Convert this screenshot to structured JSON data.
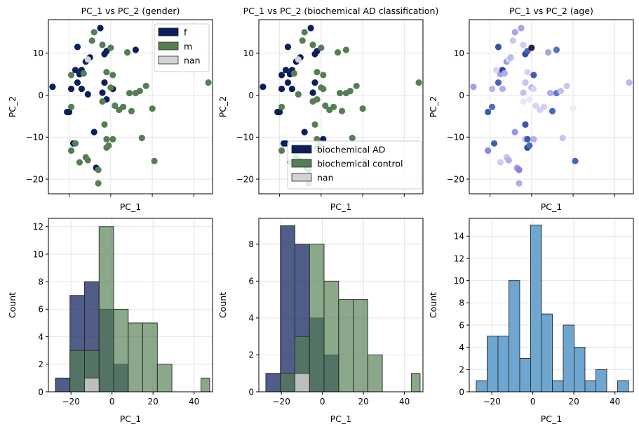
{
  "colors": {
    "f": "#0c1f5c",
    "m": "#557f52",
    "nan": "#d3d3d3",
    "age_hist": "#6ea6cf",
    "grid": "#e4e4e4"
  },
  "chart_data": [
    {
      "type": "scatter",
      "title": "PC_1 vs PC_2 (gender)",
      "xlabel": "PC_1",
      "ylabel": "PC_2",
      "xlim": [
        -30,
        49
      ],
      "ylim": [
        -23.5,
        18
      ],
      "xticks": [
        -20,
        0,
        20,
        40
      ],
      "yticks": [
        -20,
        -10,
        0,
        10
      ],
      "show_xticklabels": false,
      "grid": true,
      "legend_position": "upper right",
      "legend": [
        "f",
        "m",
        "nan"
      ],
      "series": [
        {
          "name": "f",
          "points": [
            [
              -28,
              2
            ],
            [
              -21,
              -4
            ],
            [
              -18,
              -11.5
            ],
            [
              -17,
              6
            ],
            [
              -16,
              3
            ],
            [
              -16,
              11.5
            ],
            [
              -14,
              6
            ],
            [
              -12,
              8
            ],
            [
              -10,
              9
            ],
            [
              -8,
              -8.8
            ],
            [
              -7,
              -17.3
            ],
            [
              -5,
              16
            ],
            [
              -4,
              0.6
            ],
            [
              -3,
              9.8
            ],
            [
              -2,
              10.5
            ],
            [
              -14,
              1.5
            ],
            [
              -20,
              -4
            ],
            [
              -15,
              5
            ],
            [
              -19,
              1.5
            ],
            [
              -3,
              3
            ],
            [
              12,
              10.8
            ],
            [
              -2,
              -1
            ],
            [
              -11,
              0.2
            ],
            [
              1,
              1.5
            ]
          ]
        },
        {
          "name": "m",
          "points": [
            [
              -19,
              4.8
            ],
            [
              -19,
              -2.8
            ],
            [
              -19,
              -13.2
            ],
            [
              -17,
              -11.5
            ],
            [
              -13,
              5.2
            ],
            [
              -12,
              -14.8
            ],
            [
              -11,
              -15.5
            ],
            [
              -8,
              15
            ],
            [
              -6,
              -17.8
            ],
            [
              -6,
              -21
            ],
            [
              -4,
              12
            ],
            [
              -3,
              -7
            ],
            [
              -2,
              5.5
            ],
            [
              -2,
              -10.5
            ],
            [
              -2,
              -12.5
            ],
            [
              -1,
              -12
            ],
            [
              0,
              11.3
            ],
            [
              1,
              4.8
            ],
            [
              1,
              -10.5
            ],
            [
              2,
              -2.5
            ],
            [
              4,
              -3.5
            ],
            [
              6,
              -2.8
            ],
            [
              8,
              10.2
            ],
            [
              9,
              0.5
            ],
            [
              10,
              -3.8
            ],
            [
              12,
              0.5
            ],
            [
              14,
              1
            ],
            [
              15,
              -10.2
            ],
            [
              17,
              2.2
            ],
            [
              20,
              -3.2
            ],
            [
              21,
              -15.7
            ],
            [
              47,
              3
            ],
            [
              -9,
              13
            ],
            [
              0,
              1.8
            ],
            [
              -4,
              -1.5
            ],
            [
              -15,
              -16
            ]
          ]
        },
        {
          "name": "nan",
          "points": [
            [
              -11,
              8.5
            ]
          ]
        }
      ]
    },
    {
      "type": "scatter",
      "title": "PC_1 vs PC_2 (biochemical AD classification)",
      "xlabel": "PC_1",
      "ylabel": "PC_2",
      "xlim": [
        -30,
        49
      ],
      "ylim": [
        -23.5,
        18
      ],
      "xticks": [
        -20,
        0,
        20,
        40
      ],
      "yticks": [
        -20,
        -10,
        0,
        10
      ],
      "show_xticklabels": false,
      "grid": true,
      "legend_position": "lower center",
      "legend": [
        "biochemical AD",
        "biochemical control",
        "nan"
      ],
      "series": [
        {
          "name": "biochemical AD",
          "points": [
            [
              -28,
              2
            ],
            [
              -21,
              -4
            ],
            [
              -18,
              -11.5
            ],
            [
              -17,
              6
            ],
            [
              -16,
              3
            ],
            [
              -16,
              11.5
            ],
            [
              -14,
              6
            ],
            [
              -12,
              8
            ],
            [
              -10,
              9
            ],
            [
              -8,
              -8.8
            ],
            [
              -7,
              -17.3
            ],
            [
              -5,
              16
            ],
            [
              -4,
              0.6
            ],
            [
              -3,
              9.8
            ],
            [
              -2,
              10.5
            ],
            [
              -14,
              1.5
            ],
            [
              -20,
              -4
            ],
            [
              -15,
              5
            ],
            [
              -19,
              1.5
            ],
            [
              -3,
              3
            ],
            [
              -19,
              4.8
            ],
            [
              -17,
              -11.5
            ],
            [
              -11,
              -15.5
            ],
            [
              1,
              -10.5
            ]
          ]
        },
        {
          "name": "biochemical control",
          "points": [
            [
              -19,
              -2.8
            ],
            [
              -19,
              -13.2
            ],
            [
              -13,
              5.2
            ],
            [
              -12,
              -14.8
            ],
            [
              -8,
              15
            ],
            [
              -6,
              -17.8
            ],
            [
              -6,
              -21
            ],
            [
              -4,
              12
            ],
            [
              -3,
              -7
            ],
            [
              -2,
              5.5
            ],
            [
              -2,
              -10.5
            ],
            [
              -2,
              -12.5
            ],
            [
              -1,
              -12
            ],
            [
              0,
              11.3
            ],
            [
              1,
              4.8
            ],
            [
              2,
              -2.5
            ],
            [
              4,
              -3.5
            ],
            [
              6,
              -2.8
            ],
            [
              8,
              10.2
            ],
            [
              9,
              0.5
            ],
            [
              10,
              -3.8
            ],
            [
              12,
              10.8
            ],
            [
              12,
              0.5
            ],
            [
              14,
              1
            ],
            [
              15,
              -10.2
            ],
            [
              17,
              2.2
            ],
            [
              20,
              -3.2
            ],
            [
              21,
              -15.7
            ],
            [
              47,
              3
            ],
            [
              -9,
              13
            ],
            [
              0,
              1.8
            ],
            [
              -4,
              -1.5
            ],
            [
              -2,
              -1
            ],
            [
              -11,
              0.2
            ],
            [
              1,
              1.5
            ],
            [
              -15,
              -16
            ]
          ]
        },
        {
          "name": "nan",
          "points": [
            [
              -11,
              8.5
            ]
          ]
        }
      ]
    },
    {
      "type": "scatter",
      "title": "PC_1 vs PC_2 (age)",
      "xlabel": "PC_1",
      "ylabel": "PC_2",
      "xlim": [
        -30,
        49
      ],
      "ylim": [
        -23.5,
        18
      ],
      "xticks": [
        -20,
        0,
        20,
        40
      ],
      "yticks": [
        -20,
        -10,
        0,
        10
      ],
      "show_xticklabels": false,
      "grid": true,
      "points": [
        [
          -28,
          2,
          "#9ea3e6"
        ],
        [
          -21,
          -4,
          "#3b5cad"
        ],
        [
          -21,
          -13.2,
          "#8a86de"
        ],
        [
          -19,
          -2.8,
          "#4f6bc2"
        ],
        [
          -19,
          1.5,
          "#b8b4ef"
        ],
        [
          -18,
          -11.5,
          "#3f5fb4"
        ],
        [
          -17,
          6,
          "#d8d6f7"
        ],
        [
          -16,
          3,
          "#4566b9"
        ],
        [
          -16,
          11.5,
          "#3552a8"
        ],
        [
          -15,
          5,
          "#a9a4ec"
        ],
        [
          -14,
          6,
          "#2e4b9e"
        ],
        [
          -14,
          1.5,
          "#b3aef0"
        ],
        [
          -13,
          5.2,
          "#b0ace9"
        ],
        [
          -12,
          8,
          "#9d99e6"
        ],
        [
          -12,
          -14.8,
          "#c5c1f1"
        ],
        [
          -11,
          -15.5,
          "#b3aef0"
        ],
        [
          -11,
          8.5,
          "#d3d1f5"
        ],
        [
          -10,
          9,
          "#bcb8f0"
        ],
        [
          -9,
          13,
          "#c9c6f2"
        ],
        [
          -8,
          15,
          "#a7a2ea"
        ],
        [
          -8,
          -8.8,
          "#9a95e5"
        ],
        [
          -7,
          -17.3,
          "#a29ee8"
        ],
        [
          -6,
          -17.8,
          "#8682dd"
        ],
        [
          -6,
          -21,
          "#b1adeb"
        ],
        [
          -5,
          16,
          "#a7a2ea"
        ],
        [
          -4,
          12,
          "#d0cdf4"
        ],
        [
          -4,
          0.6,
          "#c4c0f2"
        ],
        [
          -4,
          -1.5,
          "#e8e6fa"
        ],
        [
          -3,
          9.8,
          "#2f4ca0"
        ],
        [
          -3,
          3,
          "#c8c5f2"
        ],
        [
          -3,
          -7,
          "#3a58ab"
        ],
        [
          -3,
          -10.5,
          "#c2befa"
        ],
        [
          -2,
          10.5,
          "#4263b6"
        ],
        [
          -2,
          5.5,
          "#d4d2f5"
        ],
        [
          -2,
          -10.5,
          "#3c5baf"
        ],
        [
          -2,
          -12.5,
          "#2d4a9c"
        ],
        [
          -1,
          -12,
          "#4b69c0"
        ],
        [
          -1,
          -1,
          "#e8e6fa"
        ],
        [
          0,
          11.3,
          "#2c2140"
        ],
        [
          0,
          1.8,
          "#b8b4ef"
        ],
        [
          1,
          4.8,
          "#3e5db3"
        ],
        [
          1,
          -10.5,
          "#b5b0ed"
        ],
        [
          1,
          1.5,
          "#d7d4f6"
        ],
        [
          2,
          -2.5,
          "#d7d4f6"
        ],
        [
          4,
          -3.5,
          "#d7d4f6"
        ],
        [
          6,
          -2.8,
          "#d2cff5"
        ],
        [
          8,
          10.2,
          "#a7a2ea"
        ],
        [
          9,
          0.5,
          "#b0abeb"
        ],
        [
          10,
          -3.8,
          "#4a68bf"
        ],
        [
          12,
          10.8,
          "#5374c6"
        ],
        [
          12,
          0.5,
          "#5a78c8"
        ],
        [
          14,
          1,
          "#c3bff2"
        ],
        [
          15,
          -10.2,
          "#c7c3f2"
        ],
        [
          17,
          2.2,
          "#c8c5f3"
        ],
        [
          20,
          -3.2,
          "#f0eefc"
        ],
        [
          21,
          -15.7,
          "#4566b9"
        ],
        [
          47,
          3,
          "#b9b5ef"
        ],
        [
          -15,
          -16,
          "#cfcbf4"
        ]
      ]
    },
    {
      "type": "histogram",
      "xlabel": "PC_1",
      "ylabel": "Count",
      "xlim": [
        -31,
        49
      ],
      "ylim": [
        0,
        12.6
      ],
      "xticks": [
        -20,
        0,
        20,
        40
      ],
      "yticks": [
        0,
        2,
        4,
        6,
        8,
        10,
        12
      ],
      "grid": true,
      "bin_edges": [
        -27.6,
        -20.5,
        -13.4,
        -6.3,
        0.8,
        7.9,
        15.0,
        22.1,
        29.2,
        36.3,
        43.4,
        47.6
      ],
      "series": [
        {
          "name": "f",
          "values": [
            1,
            7,
            8,
            6,
            2,
            0,
            0,
            0,
            0,
            0,
            0
          ]
        },
        {
          "name": "m",
          "values": [
            0,
            3,
            3,
            12,
            6,
            5,
            5,
            2,
            0,
            0,
            1
          ]
        },
        {
          "name": "nan",
          "values": [
            0,
            0,
            1,
            0,
            0,
            0,
            0,
            0,
            0,
            0,
            0
          ]
        }
      ]
    },
    {
      "type": "histogram",
      "xlabel": "PC_1",
      "ylabel": "Count",
      "xlim": [
        -31,
        49
      ],
      "ylim": [
        0,
        9.4
      ],
      "xticks": [
        -20,
        0,
        20,
        40
      ],
      "yticks": [
        0,
        2,
        4,
        6,
        8
      ],
      "grid": true,
      "bin_edges": [
        -27.6,
        -20.5,
        -13.4,
        -6.3,
        0.8,
        7.9,
        15.0,
        22.1,
        29.2,
        36.3,
        43.4,
        47.6
      ],
      "series": [
        {
          "name": "biochemical AD",
          "values": [
            1,
            9,
            8,
            4,
            2,
            0,
            0,
            0,
            0,
            0,
            0
          ]
        },
        {
          "name": "biochemical control",
          "values": [
            0,
            1,
            3,
            8,
            6,
            5,
            5,
            2,
            0,
            0,
            1
          ]
        },
        {
          "name": "nan",
          "values": [
            0,
            0,
            1,
            0,
            0,
            0,
            0,
            0,
            0,
            0,
            0
          ]
        }
      ]
    },
    {
      "type": "histogram",
      "xlabel": "PC_1",
      "ylabel": "Count",
      "xlim": [
        -31,
        49
      ],
      "ylim": [
        0,
        15.6
      ],
      "xticks": [
        -20,
        0,
        20,
        40
      ],
      "yticks": [
        0,
        2,
        4,
        6,
        8,
        10,
        12,
        14
      ],
      "grid": true,
      "bin_edges": [
        -27.6,
        -22.3,
        -17.0,
        -11.7,
        -6.4,
        -1.1,
        4.2,
        9.5,
        14.8,
        20.1,
        25.4,
        30.7,
        36.0,
        41.3,
        46.6
      ],
      "series": [
        {
          "name": "age",
          "values": [
            1,
            5,
            5,
            10,
            3,
            15,
            7,
            1,
            6,
            4,
            1,
            2,
            0,
            1
          ]
        }
      ]
    }
  ]
}
